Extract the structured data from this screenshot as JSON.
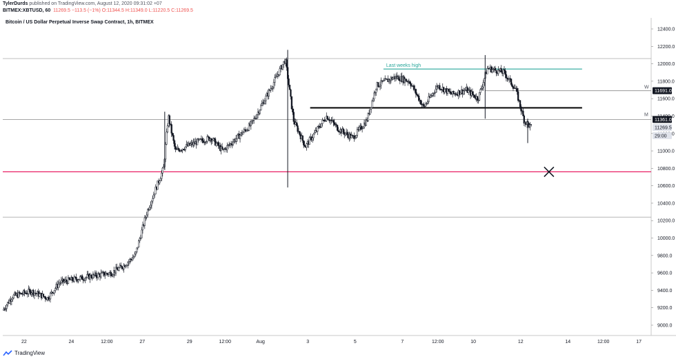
{
  "header": {
    "author": "TylerDurds",
    "published": "published on TradingView.com, August 12, 2020 09:31:02 +07",
    "symbol": "BITMEX:XBTUSD, 60",
    "last": "11269.5",
    "change": "−113.5 (−1%)",
    "ohlc": "O:11344.5 H:11349.0 L:11220.5 C:11269.5"
  },
  "chart_title": "Bitcoin / US Dollar Perpetual Inverse Swap Contract, 1h, BITMEX",
  "footer": {
    "brand": "TradingView"
  },
  "colors": {
    "candle": "#131722",
    "teal": "#26a69a",
    "pink": "#e91e63",
    "grid": "#c8c8c8",
    "gray_level": "#888888"
  },
  "chart_data": {
    "type": "candlestick",
    "y_axis": {
      "range": [
        8880,
        12560
      ],
      "ticks": [
        9000,
        9200,
        9400,
        9600,
        9800,
        10000,
        10200,
        10400,
        10600,
        10800,
        11000,
        11200,
        11400,
        11600,
        11800,
        12000,
        12200,
        12400
      ],
      "tick_labels": [
        "9000.0",
        "9200.0",
        "9400.0",
        "9600.0",
        "9800.0",
        "10000.0",
        "10200.0",
        "10400.0",
        "10600.0",
        "10800.0",
        "11000.0",
        "11200.0",
        "11400.0",
        "11600.0",
        "11800.0",
        "12000.0",
        "12200.0",
        "12400.0"
      ],
      "position": "right"
    },
    "x_axis": {
      "labels": [
        {
          "label": "22",
          "day": 0.9
        },
        {
          "label": "24",
          "day": 2.9
        },
        {
          "label": "12:00",
          "day": 4.4
        },
        {
          "label": "27",
          "day": 5.9
        },
        {
          "label": "29",
          "day": 7.9
        },
        {
          "label": "12:00",
          "day": 9.4
        },
        {
          "label": "Aug",
          "day": 10.9
        },
        {
          "label": "3",
          "day": 12.9
        },
        {
          "label": "5",
          "day": 14.9
        },
        {
          "label": "7",
          "day": 16.9
        },
        {
          "label": "12:00",
          "day": 18.4
        },
        {
          "label": "10",
          "day": 19.9
        },
        {
          "label": "12",
          "day": 21.9
        },
        {
          "label": "14",
          "day": 23.9
        },
        {
          "label": "12:00",
          "day": 25.4
        },
        {
          "label": "17",
          "day": 26.9
        }
      ]
    },
    "price_path": [
      [
        0,
        9170
      ],
      [
        0.4,
        9330
      ],
      [
        1.2,
        9390
      ],
      [
        1.9,
        9310
      ],
      [
        2.4,
        9490
      ],
      [
        3.1,
        9530
      ],
      [
        3.7,
        9560
      ],
      [
        4.6,
        9600
      ],
      [
        5.1,
        9680
      ],
      [
        5.6,
        9800
      ],
      [
        6.1,
        10300
      ],
      [
        6.8,
        10800
      ],
      [
        7.0,
        11400
      ],
      [
        7.3,
        11000
      ],
      [
        8.2,
        11100
      ],
      [
        8.8,
        11150
      ],
      [
        9.3,
        11000
      ],
      [
        9.9,
        11150
      ],
      [
        10.5,
        11300
      ],
      [
        11.3,
        11700
      ],
      [
        11.95,
        12050
      ],
      [
        12.3,
        11350
      ],
      [
        12.8,
        11050
      ],
      [
        13.7,
        11400
      ],
      [
        14.2,
        11250
      ],
      [
        14.8,
        11150
      ],
      [
        15.4,
        11350
      ],
      [
        15.8,
        11750
      ],
      [
        16.6,
        11850
      ],
      [
        17.2,
        11800
      ],
      [
        17.8,
        11500
      ],
      [
        18.4,
        11750
      ],
      [
        19.0,
        11650
      ],
      [
        19.6,
        11700
      ],
      [
        20.1,
        11600
      ],
      [
        20.5,
        11950
      ],
      [
        21.2,
        11900
      ],
      [
        21.7,
        11700
      ],
      [
        22.05,
        11350
      ],
      [
        22.35,
        11269.5
      ]
    ],
    "wicks": [
      {
        "day": 12.05,
        "high": 12160,
        "low": 10580
      },
      {
        "day": 20.4,
        "high": 12100,
        "low": 11370
      },
      {
        "day": 22.2,
        "high": 11370,
        "low": 11090
      },
      {
        "day": 6.85,
        "high": 11450,
        "low": 10780
      }
    ],
    "levels": [
      {
        "name": "gray-upper",
        "price": 12060,
        "kind": "full",
        "color": "#aaaaaa"
      },
      {
        "name": "gray-mid",
        "price": 11361.0,
        "kind": "full",
        "color": "#888888"
      },
      {
        "name": "gray-lower",
        "price": 10240,
        "kind": "full",
        "color": "#aaaaaa"
      },
      {
        "name": "support-pink",
        "price": 10760,
        "kind": "full",
        "color": "#e91e63"
      },
      {
        "name": "last-weeks-high",
        "price": 11940,
        "kind": "segment",
        "from_day": 16.1,
        "to_day": 24.5,
        "color": "#26a69a"
      },
      {
        "name": "horizontal-black",
        "price": 11495,
        "kind": "segment",
        "from_day": 13.0,
        "to_day": 24.5,
        "color": "#000000"
      },
      {
        "name": "weekly-level",
        "price": 11691.0,
        "kind": "segment",
        "from_day": 20.4,
        "to_day": 27.9,
        "color": "#888888"
      }
    ],
    "annotations": {
      "last_weeks_high": "Last weeks high",
      "weekly": "W",
      "monthly": "M",
      "cross_day": 23.1,
      "cross_price": 10760
    },
    "price_tags": [
      {
        "label": "11691.0",
        "price": 11691.0,
        "style": "dark"
      },
      {
        "label": "11361.0",
        "price": 11361.0,
        "style": "dark"
      },
      {
        "label": "11269.5",
        "price": 11269.5,
        "style": "light"
      },
      {
        "label": "29:00",
        "price": 11175,
        "style": "light"
      }
    ]
  }
}
